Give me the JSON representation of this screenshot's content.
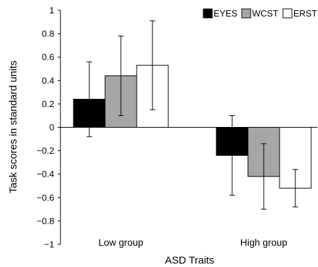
{
  "chart_data": {
    "type": "bar",
    "title": "",
    "xlabel": "ASD Traits",
    "ylabel": "Task scores in standard units",
    "ylim": [
      -1,
      1
    ],
    "yticks": [
      -1,
      -0.8,
      -0.6,
      -0.4,
      -0.2,
      0,
      0.2,
      0.4,
      0.6,
      0.8,
      1
    ],
    "ytick_labels": [
      "−1",
      "−0.8",
      "−0.6",
      "−0.4",
      "−0.2",
      "0",
      "0.2",
      "0.4",
      "0.6",
      "0.8",
      "1"
    ],
    "categories": [
      "Low group",
      "High group"
    ],
    "legend_position": "top-right",
    "grid": false,
    "series": [
      {
        "name": "EYES",
        "color": "#000000",
        "values": [
          0.24,
          -0.24
        ],
        "error_low": [
          -0.08,
          -0.58
        ],
        "error_high": [
          0.56,
          0.1
        ]
      },
      {
        "name": "WCST",
        "color": "#a6a6a6",
        "values": [
          0.44,
          -0.42
        ],
        "error_low": [
          0.1,
          -0.7
        ],
        "error_high": [
          0.78,
          -0.14
        ]
      },
      {
        "name": "ERST",
        "color": "#ffffff",
        "values": [
          0.53,
          -0.52
        ],
        "error_low": [
          0.15,
          -0.68
        ],
        "error_high": [
          0.91,
          -0.36
        ]
      }
    ]
  }
}
